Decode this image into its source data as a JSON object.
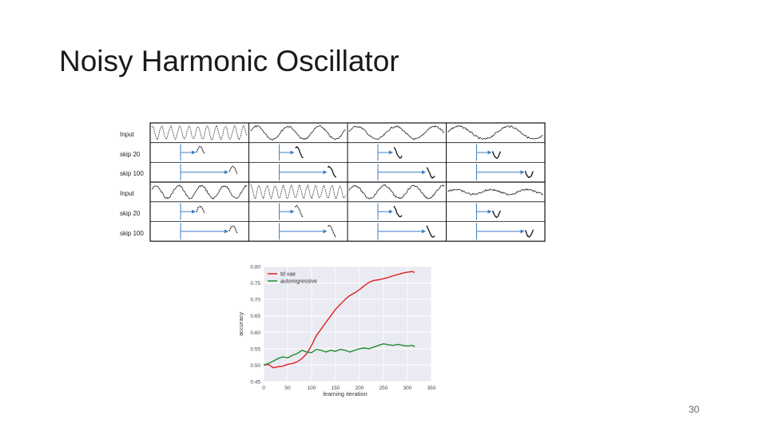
{
  "slide": {
    "title": "Noisy Harmonic Oscillator",
    "page_number": "30"
  },
  "oscillator_figure": {
    "row_labels": [
      "Input",
      "skip 20",
      "skip 100",
      "Input",
      "skip 20",
      "skip 100"
    ],
    "panel_count": 4,
    "arrow_color": "#3d7fc4"
  },
  "chart_data": {
    "type": "line",
    "xlabel": "learning iteration",
    "ylabel": "accuracy",
    "xlim": [
      0,
      350
    ],
    "ylim": [
      0.45,
      0.8
    ],
    "xticks": [
      0,
      50,
      100,
      150,
      200,
      250,
      300,
      350
    ],
    "yticks": [
      0.45,
      0.5,
      0.55,
      0.6,
      0.65,
      0.7,
      0.75,
      0.8
    ],
    "legend_position": "top-left",
    "grid": true,
    "series": [
      {
        "name": "td vae",
        "color": "#e02020",
        "x": [
          0,
          10,
          20,
          30,
          40,
          50,
          60,
          70,
          80,
          90,
          100,
          110,
          120,
          130,
          140,
          150,
          160,
          170,
          180,
          190,
          200,
          210,
          220,
          230,
          240,
          250,
          260,
          270,
          280,
          290,
          300,
          310,
          315
        ],
        "y": [
          0.5,
          0.502,
          0.492,
          0.495,
          0.497,
          0.502,
          0.505,
          0.51,
          0.52,
          0.535,
          0.56,
          0.59,
          0.61,
          0.63,
          0.65,
          0.67,
          0.685,
          0.7,
          0.712,
          0.72,
          0.73,
          0.742,
          0.752,
          0.758,
          0.76,
          0.763,
          0.767,
          0.772,
          0.776,
          0.78,
          0.783,
          0.785,
          0.782
        ]
      },
      {
        "name": "autoregressive",
        "color": "#1e8c2e",
        "x": [
          0,
          10,
          20,
          30,
          40,
          50,
          60,
          70,
          80,
          90,
          100,
          110,
          120,
          130,
          140,
          150,
          160,
          170,
          180,
          190,
          200,
          210,
          220,
          230,
          240,
          250,
          260,
          270,
          280,
          290,
          300,
          310,
          315
        ],
        "y": [
          0.5,
          0.505,
          0.512,
          0.52,
          0.525,
          0.522,
          0.53,
          0.535,
          0.545,
          0.54,
          0.538,
          0.548,
          0.545,
          0.54,
          0.545,
          0.542,
          0.548,
          0.545,
          0.54,
          0.545,
          0.55,
          0.552,
          0.55,
          0.555,
          0.56,
          0.565,
          0.562,
          0.56,
          0.563,
          0.56,
          0.558,
          0.56,
          0.556
        ]
      }
    ]
  }
}
